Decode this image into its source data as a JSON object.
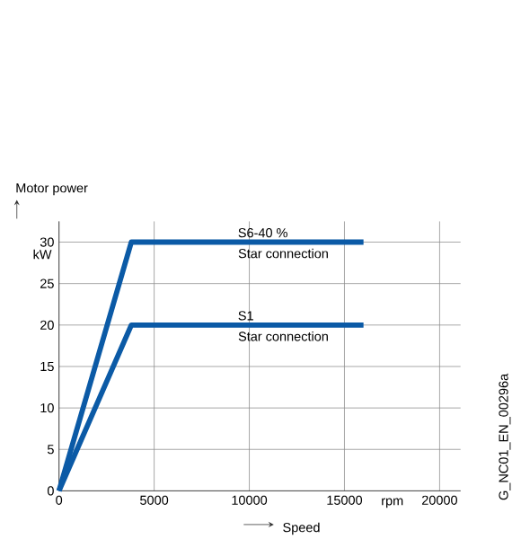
{
  "chart_data": {
    "type": "line",
    "ylabel": "Motor power",
    "xlabel": "Speed",
    "x": [
      0,
      3800,
      16000
    ],
    "series": [
      {
        "name": "S6-40 %",
        "color": "#0b5aa6",
        "values": [
          0,
          30,
          30
        ]
      },
      {
        "name": "S1",
        "color": "#0b5aa6",
        "values": [
          0,
          20,
          20
        ]
      }
    ],
    "xlim": [
      0,
      21100
    ],
    "ylim": [
      0,
      32.5
    ],
    "xticks": [
      0,
      5000,
      10000,
      15000,
      20000
    ],
    "yticks": [
      0,
      5,
      10,
      15,
      20,
      25,
      30
    ],
    "grid": true,
    "line_style": "solid",
    "marker": "none",
    "annotations": [
      "kW",
      "rpm",
      "G_NC01_EN_00296a",
      {
        "text": "Star connection",
        "x": 9300,
        "y": 30
      },
      {
        "text": "Star connection",
        "x": 9300,
        "y": 20
      }
    ]
  }
}
